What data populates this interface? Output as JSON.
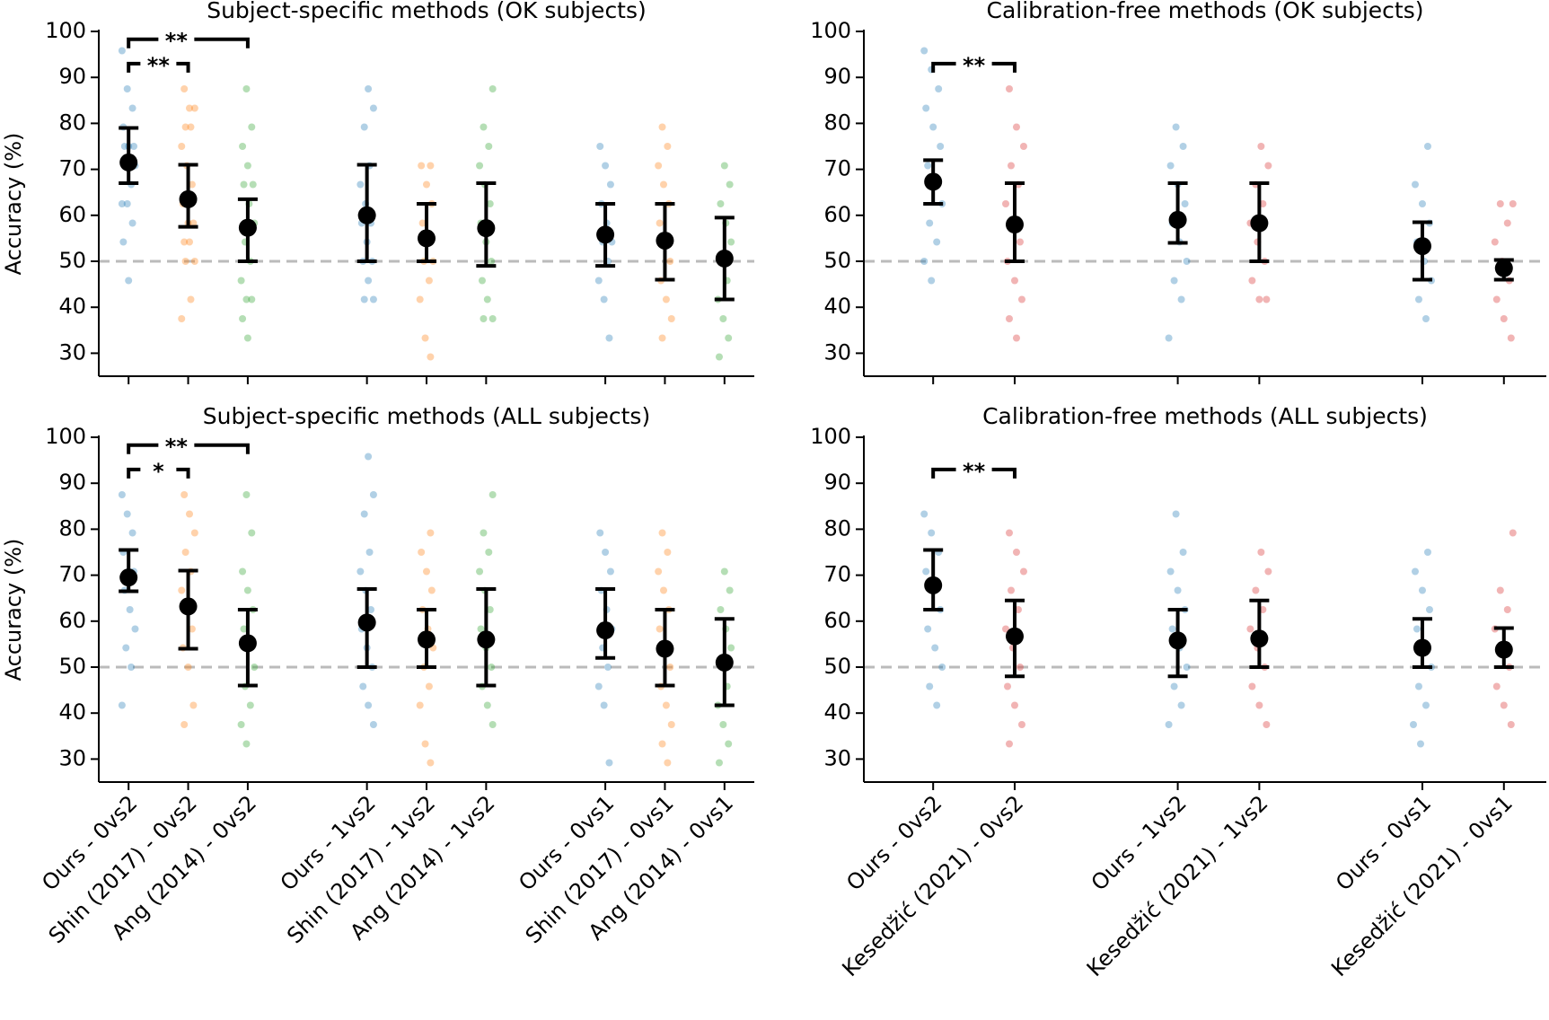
{
  "chart_data": [
    {
      "type": "strip",
      "title": "Subject-specific methods (OK subjects)",
      "ylabel": "Accuracy (%)",
      "categories": [
        null,
        null,
        null,
        null,
        null,
        null,
        null,
        null,
        null
      ],
      "colors": [
        "#1f77b4",
        "#ff7f0e",
        "#2ca02c",
        "#1f77b4",
        "#ff7f0e",
        "#2ca02c",
        "#1f77b4",
        "#ff7f0e",
        "#2ca02c"
      ],
      "means": [
        71.5,
        63.5,
        57.3,
        60,
        55,
        57.2,
        55.8,
        54.5,
        50.6
      ],
      "ci_low": [
        67,
        57.5,
        50,
        50,
        50,
        49,
        49,
        46,
        41.7
      ],
      "ci_high": [
        79,
        71,
        63.5,
        71,
        62.5,
        67,
        62.5,
        62.5,
        59.5
      ],
      "points": [
        [
          95.8,
          87.5,
          83.3,
          79.2,
          75,
          75,
          75,
          70.8,
          70.8,
          70.8,
          66.7,
          62.5,
          62.5,
          58.3,
          54.2,
          45.8
        ],
        [
          87.5,
          83.3,
          83.3,
          79.2,
          79.2,
          75,
          70.8,
          66.7,
          62.5,
          58.3,
          58.3,
          54.2,
          54.2,
          50,
          50,
          41.7,
          37.5
        ],
        [
          87.5,
          79.2,
          75,
          70.8,
          66.7,
          66.7,
          62.5,
          58.3,
          54.2,
          50,
          45.8,
          41.7,
          41.7,
          37.5,
          33.3
        ],
        [
          87.5,
          83.3,
          79.2,
          70.8,
          66.7,
          62.5,
          58.3,
          58.3,
          54.2,
          50,
          50,
          45.8,
          41.7,
          41.7
        ],
        [
          70.8,
          70.8,
          66.7,
          62.5,
          58.3,
          54.2,
          50,
          50,
          45.8,
          41.7,
          33.3,
          29.2
        ],
        [
          87.5,
          79.2,
          75,
          70.8,
          66.7,
          62.5,
          58.3,
          54.2,
          50,
          45.8,
          41.7,
          37.5,
          37.5
        ],
        [
          75,
          70.8,
          66.7,
          62.5,
          58.3,
          54.2,
          54.2,
          50,
          45.8,
          41.7,
          33.3
        ],
        [
          79.2,
          75,
          70.8,
          66.7,
          62.5,
          58.3,
          54.2,
          50,
          45.8,
          41.7,
          37.5,
          33.3
        ],
        [
          70.8,
          66.7,
          62.5,
          58.3,
          54.2,
          50,
          45.8,
          41.7,
          37.5,
          33.3,
          29.2
        ]
      ],
      "ylim": [
        25,
        100
      ],
      "yticks": [
        30,
        40,
        50,
        60,
        70,
        80,
        90,
        100
      ],
      "reference_line": 50,
      "significance": [
        {
          "from": 0,
          "to": 1,
          "label": "**"
        },
        {
          "from": 0,
          "to": 2,
          "label": "**"
        }
      ]
    },
    {
      "type": "strip",
      "title": "Calibration-free methods (OK subjects)",
      "categories": [
        null,
        null,
        null,
        null,
        null,
        null
      ],
      "colors": [
        "#1f77b4",
        "#d62728",
        "#1f77b4",
        "#d62728",
        "#1f77b4",
        "#d62728"
      ],
      "means": [
        67.3,
        58,
        59,
        58.3,
        53.3,
        48.5
      ],
      "ci_low": [
        62.5,
        50,
        54,
        50,
        46,
        46
      ],
      "ci_high": [
        72,
        67,
        67,
        67,
        58.5,
        50.3
      ],
      "points": [
        [
          95.8,
          91.7,
          87.5,
          83.3,
          79.2,
          75,
          70.8,
          66.7,
          62.5,
          58.3,
          54.2,
          50,
          45.8
        ],
        [
          87.5,
          79.2,
          75,
          70.8,
          66.7,
          62.5,
          58.3,
          54.2,
          50,
          45.8,
          41.7,
          37.5,
          33.3
        ],
        [
          79.2,
          75,
          70.8,
          66.7,
          62.5,
          58.3,
          54.2,
          50,
          45.8,
          41.7,
          33.3
        ],
        [
          75,
          70.8,
          66.7,
          62.5,
          58.3,
          54.2,
          50,
          45.8,
          41.7,
          41.7
        ],
        [
          75,
          66.7,
          62.5,
          58.3,
          54.2,
          50,
          45.8,
          41.7,
          37.5
        ],
        [
          62.5,
          62.5,
          58.3,
          54.2,
          50,
          45.8,
          41.7,
          37.5,
          33.3
        ]
      ],
      "ylim": [
        25,
        100
      ],
      "yticks": [
        30,
        40,
        50,
        60,
        70,
        80,
        90,
        100
      ],
      "reference_line": 50,
      "significance": [
        {
          "from": 0,
          "to": 1,
          "label": "**"
        }
      ]
    },
    {
      "type": "strip",
      "title": "Subject-specific methods (ALL subjects)",
      "ylabel": "Accuracy (%)",
      "categories": [
        "Ours - 0vs2",
        "Shin (2017) - 0vs2",
        "Ang (2014) - 0vs2",
        "Ours - 1vs2",
        "Shin (2017) - 1vs2",
        "Ang (2014) - 1vs2",
        "Ours - 0vs1",
        "Shin (2017) - 0vs1",
        "Ang (2014) - 0vs1"
      ],
      "colors": [
        "#1f77b4",
        "#ff7f0e",
        "#2ca02c",
        "#1f77b4",
        "#ff7f0e",
        "#2ca02c",
        "#1f77b4",
        "#ff7f0e",
        "#2ca02c"
      ],
      "means": [
        69.5,
        63.2,
        55.2,
        59.7,
        56,
        56,
        58,
        54,
        51
      ],
      "ci_low": [
        66.5,
        54,
        46,
        50,
        50,
        46,
        52,
        46,
        41.7
      ],
      "ci_high": [
        75.5,
        71,
        62.5,
        67,
        62.5,
        67,
        67,
        62.5,
        60.5
      ],
      "points": [
        [
          87.5,
          83.3,
          79.2,
          75,
          70.8,
          70.8,
          66.7,
          62.5,
          58.3,
          54.2,
          50,
          41.7
        ],
        [
          87.5,
          83.3,
          79.2,
          75,
          70.8,
          66.7,
          62.5,
          58.3,
          54.2,
          50,
          41.7,
          37.5
        ],
        [
          87.5,
          79.2,
          70.8,
          66.7,
          62.5,
          58.3,
          54.2,
          50,
          45.8,
          41.7,
          37.5,
          33.3
        ],
        [
          95.8,
          87.5,
          83.3,
          75,
          70.8,
          66.7,
          62.5,
          58.3,
          54.2,
          50,
          45.8,
          41.7,
          37.5
        ],
        [
          79.2,
          75,
          70.8,
          66.7,
          62.5,
          58.3,
          54.2,
          50,
          45.8,
          41.7,
          33.3,
          29.2
        ],
        [
          87.5,
          79.2,
          75,
          70.8,
          66.7,
          62.5,
          58.3,
          54.2,
          50,
          45.8,
          41.7,
          37.5
        ],
        [
          79.2,
          75,
          70.8,
          66.7,
          62.5,
          58.3,
          54.2,
          50,
          45.8,
          41.7,
          29.2
        ],
        [
          79.2,
          75,
          70.8,
          66.7,
          62.5,
          58.3,
          54.2,
          50,
          45.8,
          41.7,
          37.5,
          33.3,
          29.2
        ],
        [
          70.8,
          66.7,
          62.5,
          58.3,
          54.2,
          50,
          45.8,
          41.7,
          37.5,
          33.3,
          29.2
        ]
      ],
      "ylim": [
        25,
        100
      ],
      "yticks": [
        30,
        40,
        50,
        60,
        70,
        80,
        90,
        100
      ],
      "reference_line": 50,
      "significance": [
        {
          "from": 0,
          "to": 1,
          "label": "*"
        },
        {
          "from": 0,
          "to": 2,
          "label": "**"
        }
      ]
    },
    {
      "type": "strip",
      "title": "Calibration-free methods (ALL subjects)",
      "categories": [
        "Ours - 0vs2",
        "Kesedžić (2021) - 0vs2",
        "Ours - 1vs2",
        "Kesedžić (2021) - 1vs2",
        "Ours - 0vs1",
        "Kesedžić (2021) - 0vs1"
      ],
      "colors": [
        "#1f77b4",
        "#d62728",
        "#1f77b4",
        "#d62728",
        "#1f77b4",
        "#d62728"
      ],
      "means": [
        67.8,
        56.7,
        55.8,
        56.2,
        54.2,
        53.8
      ],
      "ci_low": [
        62.5,
        48,
        48,
        50,
        50,
        50
      ],
      "ci_high": [
        75.5,
        64.5,
        62.5,
        64.5,
        60.5,
        58.5
      ],
      "points": [
        [
          83.3,
          79.2,
          75,
          70.8,
          66.7,
          62.5,
          58.3,
          54.2,
          50,
          45.8,
          41.7
        ],
        [
          79.2,
          75,
          70.8,
          66.7,
          62.5,
          58.3,
          54.2,
          50,
          45.8,
          41.7,
          37.5,
          33.3
        ],
        [
          83.3,
          75,
          70.8,
          66.7,
          62.5,
          58.3,
          54.2,
          50,
          45.8,
          41.7,
          37.5
        ],
        [
          75,
          70.8,
          66.7,
          62.5,
          58.3,
          54.2,
          50,
          45.8,
          41.7,
          37.5
        ],
        [
          75,
          70.8,
          66.7,
          62.5,
          58.3,
          54.2,
          50,
          45.8,
          41.7,
          37.5,
          33.3
        ],
        [
          79.2,
          66.7,
          62.5,
          58.3,
          54.2,
          50,
          45.8,
          41.7,
          37.5
        ]
      ],
      "ylim": [
        25,
        100
      ],
      "yticks": [
        30,
        40,
        50,
        60,
        70,
        80,
        90,
        100
      ],
      "reference_line": 50,
      "significance": [
        {
          "from": 0,
          "to": 1,
          "label": "**"
        }
      ]
    }
  ]
}
